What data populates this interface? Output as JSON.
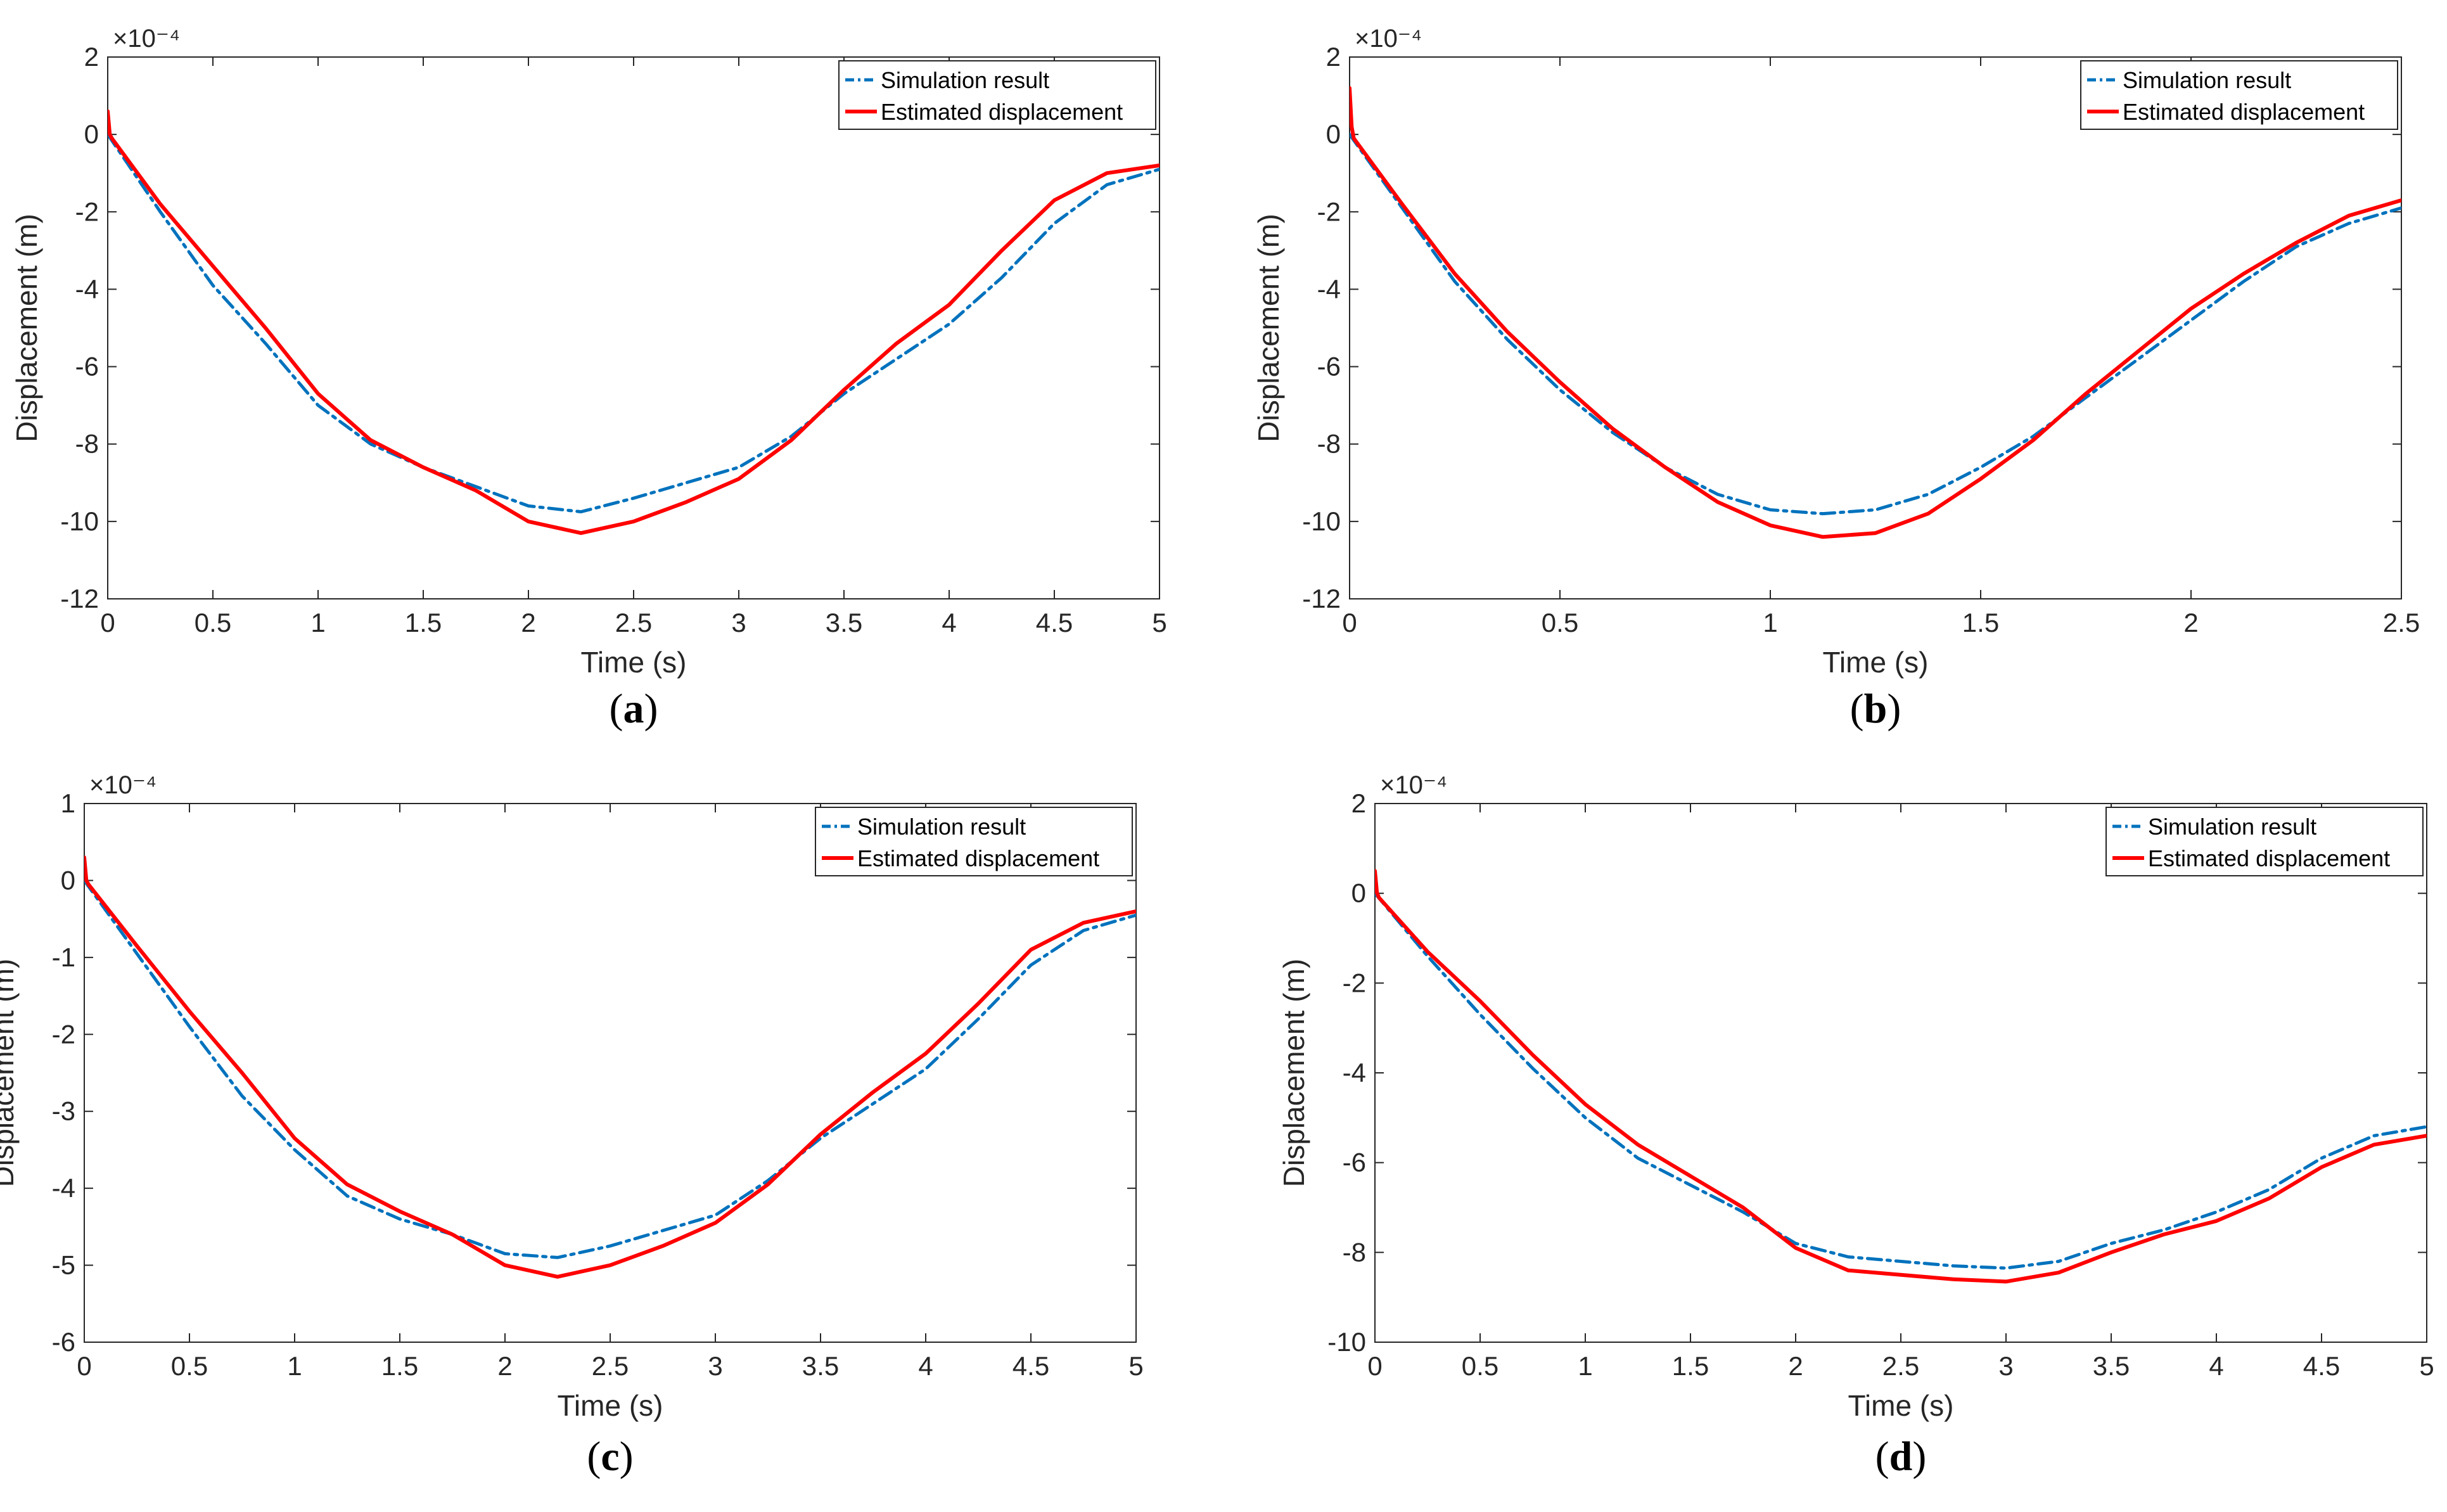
{
  "colors": {
    "simulation": "#0072BD",
    "estimated": "#FF0000",
    "axis": "#262626"
  },
  "chart_data": [
    {
      "type": "line",
      "panel_label": "a",
      "xlabel": "Time (s)",
      "ylabel": "Displacement (m)",
      "exponent_label": "×10⁻⁴",
      "xlim": [
        0,
        5
      ],
      "ylim": [
        -12,
        2
      ],
      "xticks": [
        0,
        0.5,
        1,
        1.5,
        2,
        2.5,
        3,
        3.5,
        4,
        4.5,
        5
      ],
      "yticks": [
        2,
        0,
        -2,
        -4,
        -6,
        -8,
        -10,
        -12
      ],
      "legend_position": "top-right",
      "series": [
        {
          "name": "Simulation result",
          "style": "dash-dot",
          "x": [
            0,
            0.25,
            0.5,
            0.75,
            1,
            1.25,
            1.5,
            1.75,
            2,
            2.25,
            2.5,
            2.75,
            3,
            3.25,
            3.5,
            3.75,
            4,
            4.25,
            4.5,
            4.75,
            5
          ],
          "y": [
            0,
            -2.0,
            -3.9,
            -5.4,
            -7.0,
            -8.0,
            -8.6,
            -9.1,
            -9.6,
            -9.75,
            -9.4,
            -9.0,
            -8.6,
            -7.8,
            -6.7,
            -5.8,
            -4.9,
            -3.7,
            -2.3,
            -1.3,
            -0.9
          ]
        },
        {
          "name": "Estimated displacement",
          "style": "solid",
          "x": [
            0,
            0.01,
            0.02,
            0.25,
            0.5,
            0.75,
            1,
            1.25,
            1.5,
            1.75,
            2,
            2.25,
            2.5,
            2.75,
            3,
            3.25,
            3.5,
            3.75,
            4,
            4.25,
            4.5,
            4.75,
            5
          ],
          "y": [
            0.6,
            0.0,
            -0.1,
            -1.8,
            -3.4,
            -5.0,
            -6.7,
            -7.9,
            -8.6,
            -9.2,
            -10.0,
            -10.3,
            -10.0,
            -9.5,
            -8.9,
            -7.9,
            -6.6,
            -5.4,
            -4.4,
            -3.0,
            -1.7,
            -1.0,
            -0.8
          ]
        }
      ]
    },
    {
      "type": "line",
      "panel_label": "b",
      "xlabel": "Time (s)",
      "ylabel": "Displacement (m)",
      "exponent_label": "×10⁻⁴",
      "xlim": [
        0,
        2.5
      ],
      "ylim": [
        -12,
        2
      ],
      "xticks": [
        0,
        0.5,
        1,
        1.5,
        2,
        2.5
      ],
      "yticks": [
        2,
        0,
        -2,
        -4,
        -6,
        -8,
        -10,
        -12
      ],
      "legend_position": "top-right",
      "series": [
        {
          "name": "Simulation result",
          "style": "dash-dot",
          "x": [
            0,
            0.125,
            0.25,
            0.375,
            0.5,
            0.625,
            0.75,
            0.875,
            1,
            1.125,
            1.25,
            1.375,
            1.5,
            1.625,
            1.75,
            1.875,
            2,
            2.125,
            2.25,
            2.375,
            2.5
          ],
          "y": [
            0,
            -1.9,
            -3.8,
            -5.3,
            -6.6,
            -7.7,
            -8.6,
            -9.3,
            -9.7,
            -9.8,
            -9.7,
            -9.3,
            -8.6,
            -7.8,
            -6.8,
            -5.8,
            -4.8,
            -3.8,
            -2.9,
            -2.3,
            -1.9
          ]
        },
        {
          "name": "Estimated displacement",
          "style": "solid",
          "x": [
            0,
            0.005,
            0.01,
            0.125,
            0.25,
            0.375,
            0.5,
            0.625,
            0.75,
            0.875,
            1,
            1.125,
            1.25,
            1.375,
            1.5,
            1.625,
            1.75,
            1.875,
            2,
            2.125,
            2.25,
            2.375,
            2.5
          ],
          "y": [
            1.2,
            0.2,
            -0.1,
            -1.8,
            -3.6,
            -5.1,
            -6.4,
            -7.6,
            -8.6,
            -9.5,
            -10.1,
            -10.4,
            -10.3,
            -9.8,
            -8.9,
            -7.9,
            -6.7,
            -5.6,
            -4.5,
            -3.6,
            -2.8,
            -2.1,
            -1.7
          ]
        }
      ]
    },
    {
      "type": "line",
      "panel_label": "c",
      "xlabel": "Time (s)",
      "ylabel": "Displacement (m)",
      "exponent_label": "×10⁻⁴",
      "xlim": [
        0,
        5
      ],
      "ylim": [
        -6,
        1
      ],
      "xticks": [
        0,
        0.5,
        1,
        1.5,
        2,
        2.5,
        3,
        3.5,
        4,
        4.5,
        5
      ],
      "yticks": [
        1,
        0,
        -1,
        -2,
        -3,
        -4,
        -5,
        -6
      ],
      "legend_position": "top-right",
      "series": [
        {
          "name": "Simulation result",
          "style": "dash-dot",
          "x": [
            0,
            0.25,
            0.5,
            0.75,
            1,
            1.25,
            1.5,
            1.75,
            2,
            2.25,
            2.5,
            2.75,
            3,
            3.25,
            3.5,
            3.75,
            4,
            4.25,
            4.5,
            4.75,
            5
          ],
          "y": [
            0,
            -0.95,
            -1.9,
            -2.8,
            -3.5,
            -4.1,
            -4.4,
            -4.6,
            -4.85,
            -4.9,
            -4.75,
            -4.55,
            -4.35,
            -3.9,
            -3.35,
            -2.9,
            -2.45,
            -1.8,
            -1.1,
            -0.65,
            -0.45
          ]
        },
        {
          "name": "Estimated displacement",
          "style": "solid",
          "x": [
            0,
            0.01,
            0.02,
            0.25,
            0.5,
            0.75,
            1,
            1.25,
            1.5,
            1.75,
            2,
            2.25,
            2.5,
            2.75,
            3,
            3.25,
            3.5,
            3.75,
            4,
            4.25,
            4.5,
            4.75,
            5
          ],
          "y": [
            0.3,
            0.0,
            -0.05,
            -0.85,
            -1.7,
            -2.5,
            -3.35,
            -3.95,
            -4.3,
            -4.6,
            -5.0,
            -5.15,
            -5.0,
            -4.75,
            -4.45,
            -3.95,
            -3.3,
            -2.75,
            -2.25,
            -1.6,
            -0.9,
            -0.55,
            -0.4
          ]
        }
      ]
    },
    {
      "type": "line",
      "panel_label": "d",
      "xlabel": "Time (s)",
      "ylabel": "Displacement (m)",
      "exponent_label": "×10⁻⁴",
      "xlim": [
        0,
        5
      ],
      "ylim": [
        -10,
        2
      ],
      "xticks": [
        0,
        0.5,
        1,
        1.5,
        2,
        2.5,
        3,
        3.5,
        4,
        4.5,
        5
      ],
      "yticks": [
        2,
        0,
        -2,
        -4,
        -6,
        -8,
        -10
      ],
      "legend_position": "top-right",
      "series": [
        {
          "name": "Simulation result",
          "style": "dash-dot",
          "x": [
            0,
            0.25,
            0.5,
            0.75,
            1,
            1.25,
            1.5,
            1.75,
            2,
            2.25,
            2.5,
            2.75,
            3,
            3.25,
            3.5,
            3.75,
            4,
            4.25,
            4.5,
            4.75,
            5
          ],
          "y": [
            0,
            -1.4,
            -2.7,
            -3.9,
            -5.0,
            -5.9,
            -6.5,
            -7.1,
            -7.8,
            -8.1,
            -8.2,
            -8.3,
            -8.35,
            -8.2,
            -7.8,
            -7.5,
            -7.1,
            -6.6,
            -5.9,
            -5.4,
            -5.2
          ]
        },
        {
          "name": "Estimated displacement",
          "style": "solid",
          "x": [
            0,
            0.01,
            0.02,
            0.25,
            0.5,
            0.75,
            1,
            1.25,
            1.5,
            1.75,
            2,
            2.25,
            2.5,
            2.75,
            3,
            3.25,
            3.5,
            3.75,
            4,
            4.25,
            4.5,
            4.75,
            5
          ],
          "y": [
            0.5,
            0.0,
            -0.1,
            -1.3,
            -2.4,
            -3.6,
            -4.7,
            -5.6,
            -6.3,
            -7.0,
            -7.9,
            -8.4,
            -8.5,
            -8.6,
            -8.65,
            -8.45,
            -8.0,
            -7.6,
            -7.3,
            -6.8,
            -6.1,
            -5.6,
            -5.4
          ]
        }
      ]
    }
  ]
}
